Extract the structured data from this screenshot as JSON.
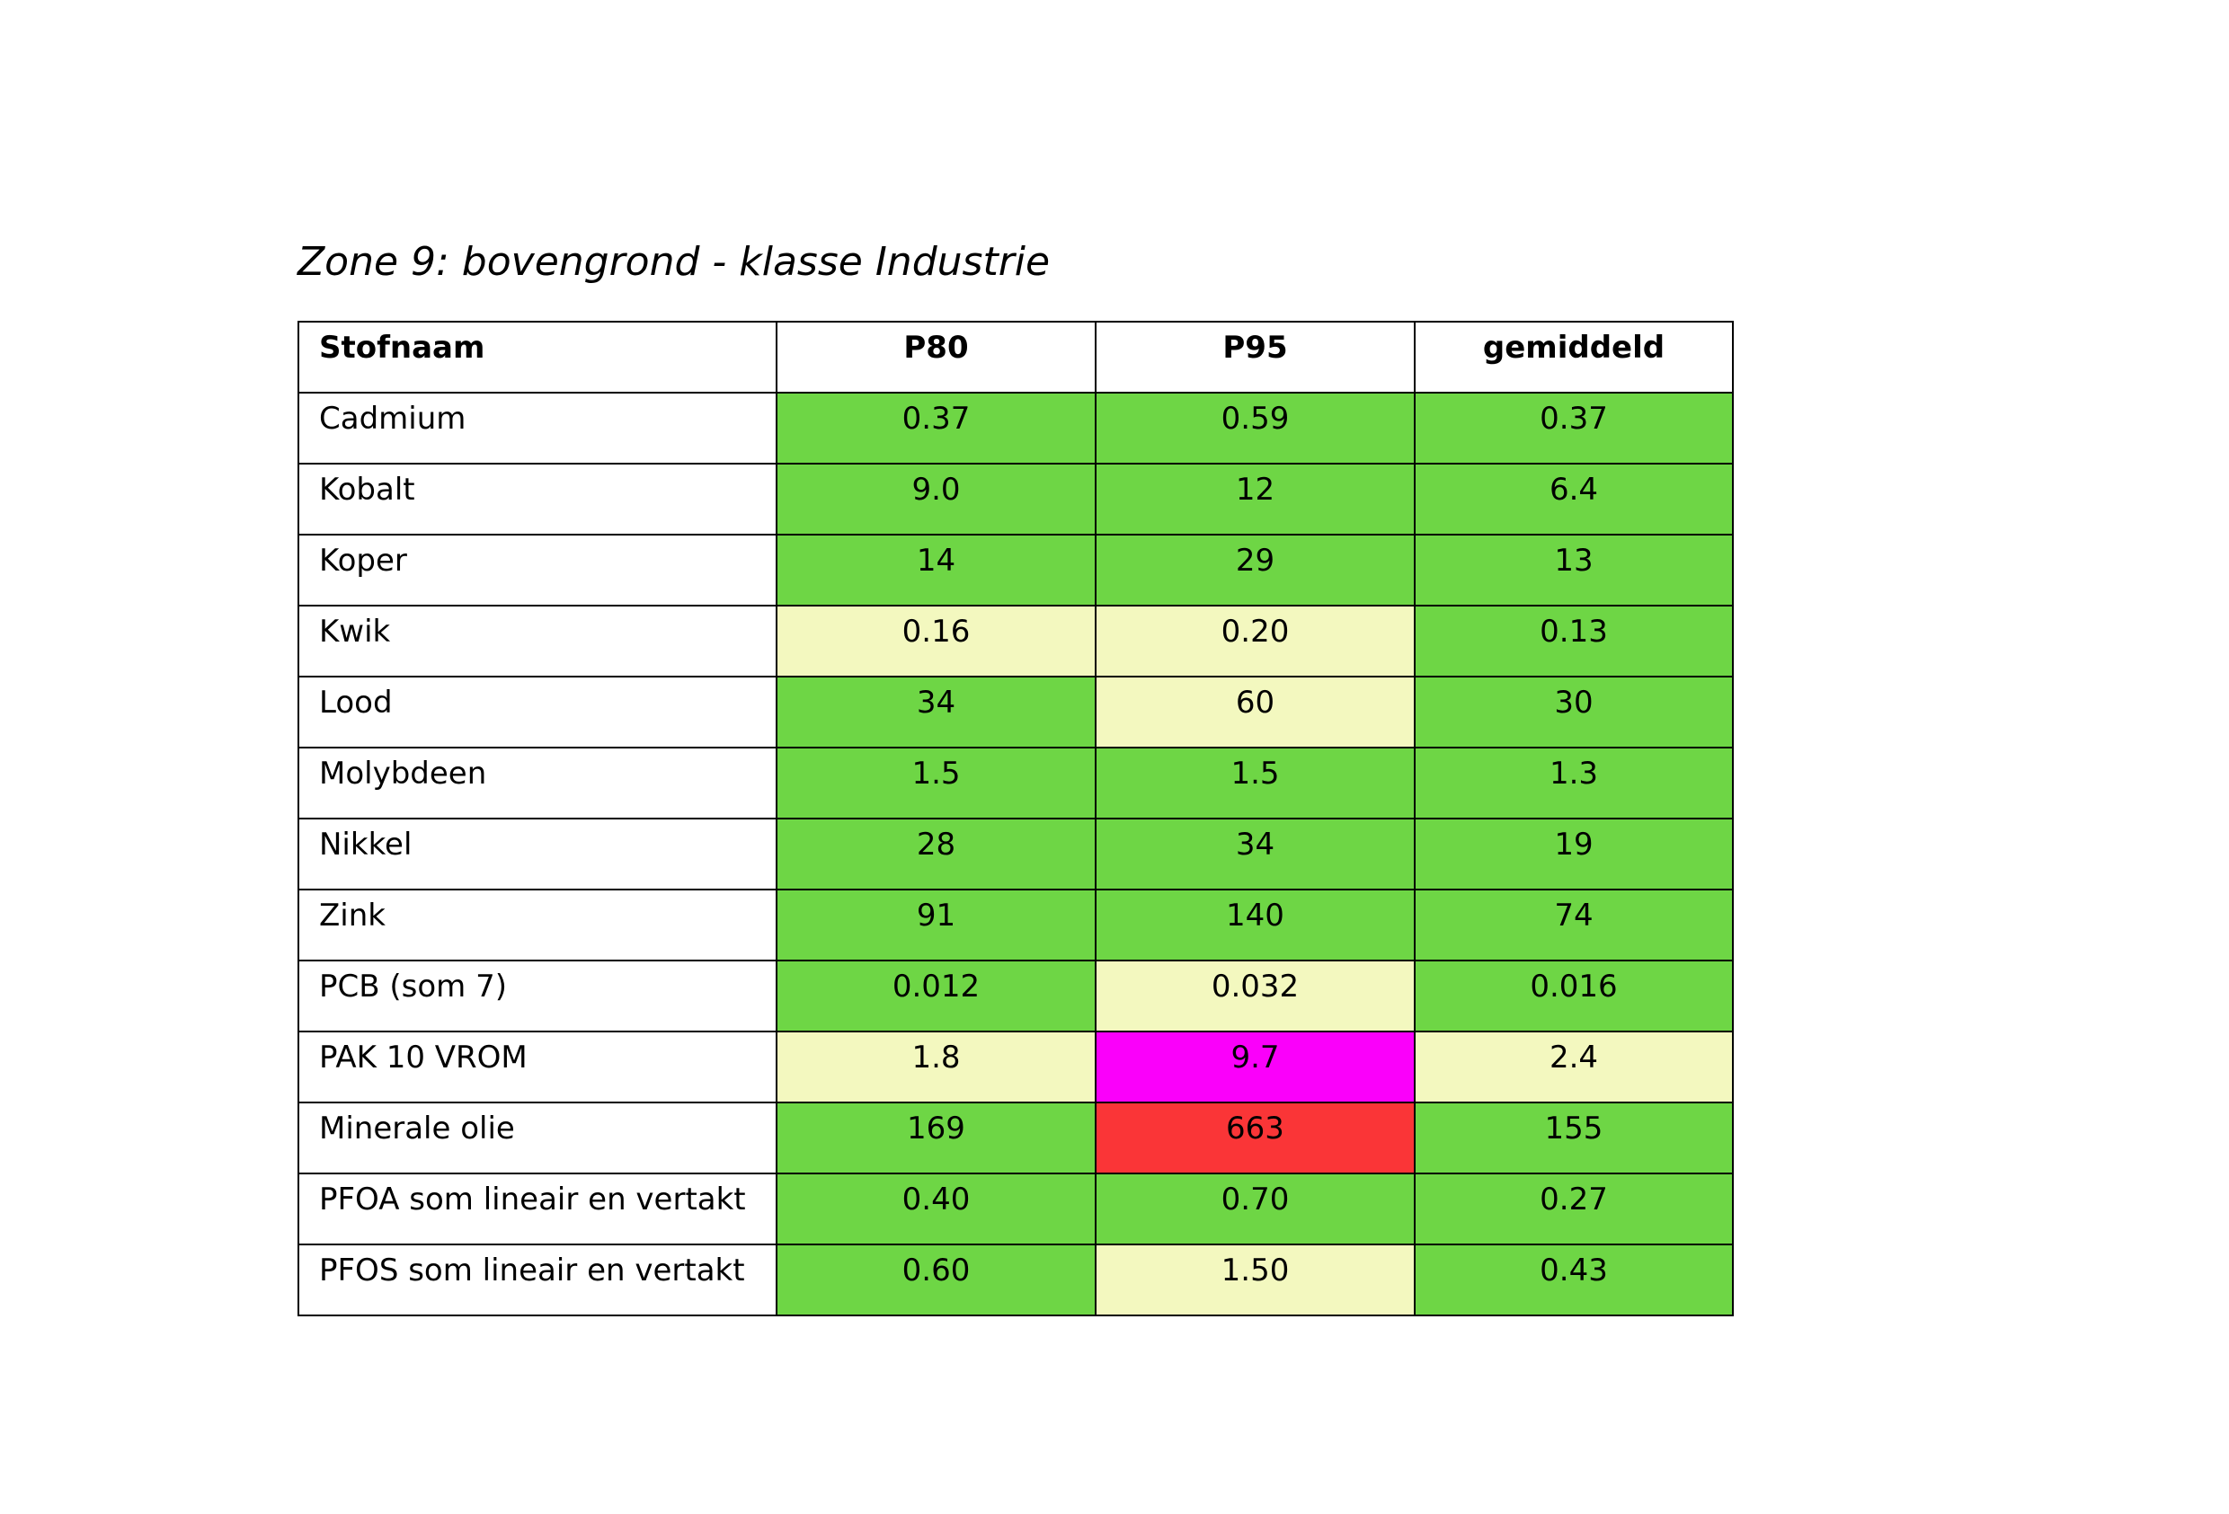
{
  "title": "Zone 9: bovengrond - klasse Industrie",
  "colors": {
    "green": "#6ed645",
    "light_yellow": "#f3f8bf",
    "magenta": "#fa00fa",
    "red": "#fa3537"
  },
  "table": {
    "headers": [
      "Stofnaam",
      "P80",
      "P95",
      "gemiddeld"
    ],
    "rows": [
      {
        "name": "Cadmium",
        "values": [
          "0.37",
          "0.59",
          "0.37"
        ],
        "colors": [
          "green",
          "green",
          "green"
        ]
      },
      {
        "name": "Kobalt",
        "values": [
          "9.0",
          "12",
          "6.4"
        ],
        "colors": [
          "green",
          "green",
          "green"
        ]
      },
      {
        "name": "Koper",
        "values": [
          "14",
          "29",
          "13"
        ],
        "colors": [
          "green",
          "green",
          "green"
        ]
      },
      {
        "name": "Kwik",
        "values": [
          "0.16",
          "0.20",
          "0.13"
        ],
        "colors": [
          "light_yellow",
          "light_yellow",
          "green"
        ]
      },
      {
        "name": "Lood",
        "values": [
          "34",
          "60",
          "30"
        ],
        "colors": [
          "green",
          "light_yellow",
          "green"
        ]
      },
      {
        "name": "Molybdeen",
        "values": [
          "1.5",
          "1.5",
          "1.3"
        ],
        "colors": [
          "green",
          "green",
          "green"
        ]
      },
      {
        "name": "Nikkel",
        "values": [
          "28",
          "34",
          "19"
        ],
        "colors": [
          "green",
          "green",
          "green"
        ]
      },
      {
        "name": "Zink",
        "values": [
          "91",
          "140",
          "74"
        ],
        "colors": [
          "green",
          "green",
          "green"
        ]
      },
      {
        "name": "PCB (som 7)",
        "values": [
          "0.012",
          "0.032",
          "0.016"
        ],
        "colors": [
          "green",
          "light_yellow",
          "green"
        ]
      },
      {
        "name": "PAK 10 VROM",
        "values": [
          "1.8",
          "9.7",
          "2.4"
        ],
        "colors": [
          "light_yellow",
          "magenta",
          "light_yellow"
        ]
      },
      {
        "name": "Minerale olie",
        "values": [
          "169",
          "663",
          "155"
        ],
        "colors": [
          "green",
          "red",
          "green"
        ]
      },
      {
        "name": "PFOA som lineair en vertakt",
        "values": [
          "0.40",
          "0.70",
          "0.27"
        ],
        "colors": [
          "green",
          "green",
          "green"
        ]
      },
      {
        "name": "PFOS som lineair en vertakt",
        "values": [
          "0.60",
          "1.50",
          "0.43"
        ],
        "colors": [
          "green",
          "light_yellow",
          "green"
        ]
      }
    ]
  }
}
